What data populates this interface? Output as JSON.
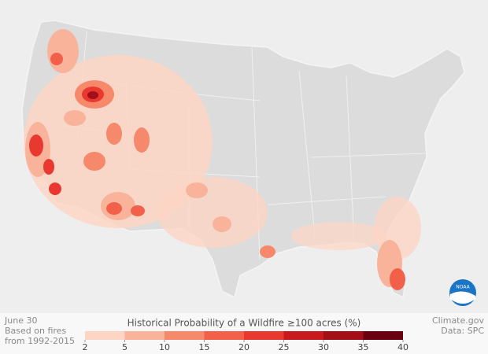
{
  "date": "June 30",
  "note": [
    "Based on fires",
    "from 1992-2015"
  ],
  "credits": [
    "Climate.gov",
    "Data: SPC"
  ],
  "logo": "NOAA",
  "legend": {
    "title": "Historical Probability of a Wildfire ≥100 acres (%)",
    "ticks": [
      2,
      5,
      10,
      15,
      20,
      25,
      30,
      35,
      40
    ],
    "colors": [
      "#fdd5c4",
      "#f9b39a",
      "#f6896c",
      "#f3604a",
      "#e8382f",
      "#c8191f",
      "#a40f17",
      "#6b0010"
    ]
  }
}
